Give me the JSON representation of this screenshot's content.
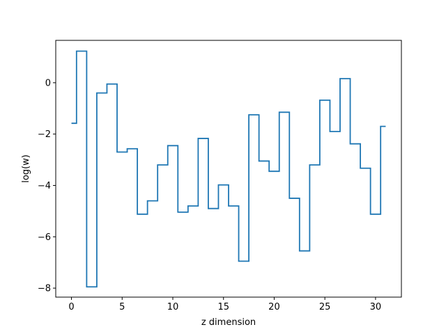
{
  "chart_data": {
    "type": "line",
    "drawstyle": "steps-mid",
    "title": "",
    "xlabel": "z dimension",
    "ylabel": "log(w)",
    "xlim": [
      -1.55,
      32.55
    ],
    "ylim": [
      -8.35,
      1.65
    ],
    "xticks": [
      0,
      5,
      10,
      15,
      20,
      25,
      30
    ],
    "yticks": [
      -8,
      -6,
      -4,
      -2,
      0
    ],
    "xtick_labels": [
      "0",
      "5",
      "10",
      "15",
      "20",
      "25",
      "30"
    ],
    "ytick_labels": [
      "−8",
      "−6",
      "−4",
      "−2",
      "0"
    ],
    "grid": false,
    "series": [
      {
        "color": "#1f77b4",
        "x": [
          0,
          1,
          2,
          3,
          4,
          5,
          6,
          7,
          8,
          9,
          10,
          11,
          12,
          13,
          14,
          15,
          16,
          17,
          18,
          19,
          20,
          21,
          22,
          23,
          24,
          25,
          26,
          27,
          28,
          29,
          30,
          31
        ],
        "y": [
          -1.58,
          1.23,
          -7.95,
          -0.4,
          -0.05,
          -2.7,
          -2.57,
          -5.12,
          -4.6,
          -3.2,
          -2.45,
          -5.04,
          -4.8,
          -2.17,
          -4.9,
          -3.98,
          -4.8,
          -6.95,
          -1.25,
          -3.05,
          -3.45,
          -1.15,
          -4.5,
          -6.55,
          -3.2,
          -0.68,
          -1.9,
          0.16,
          -2.38,
          -3.33,
          -5.12,
          -1.7
        ]
      }
    ]
  }
}
